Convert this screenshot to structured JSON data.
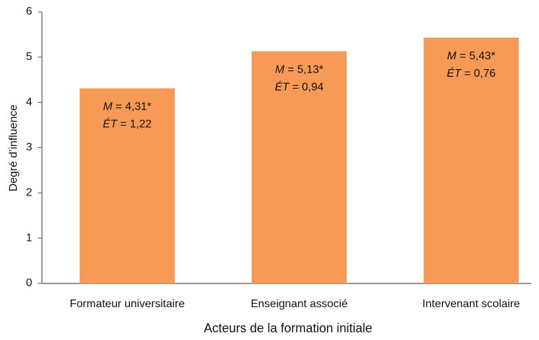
{
  "chart_data": {
    "type": "bar",
    "x_label": "Acteurs de la formation initiale",
    "y_label": "Degré d’influence",
    "categories": [
      "Formateur universitaire",
      "Enseignant associé",
      "Intervenant scolaire"
    ],
    "values": [
      4.31,
      5.13,
      5.43
    ],
    "value_labels": [
      "M = 4,31*",
      "M = 5,13*",
      "M = 5,43*"
    ],
    "sd": [
      1.22,
      0.94,
      0.76
    ],
    "sd_labels": [
      "ÉT = 1,22",
      "ÉT = 0,94",
      "ÉT = 0,76"
    ],
    "color": "#f79a55",
    "ylim": [
      0,
      6
    ],
    "yticks": [
      0,
      1,
      2,
      3,
      4,
      5,
      6
    ],
    "grid": false
  }
}
